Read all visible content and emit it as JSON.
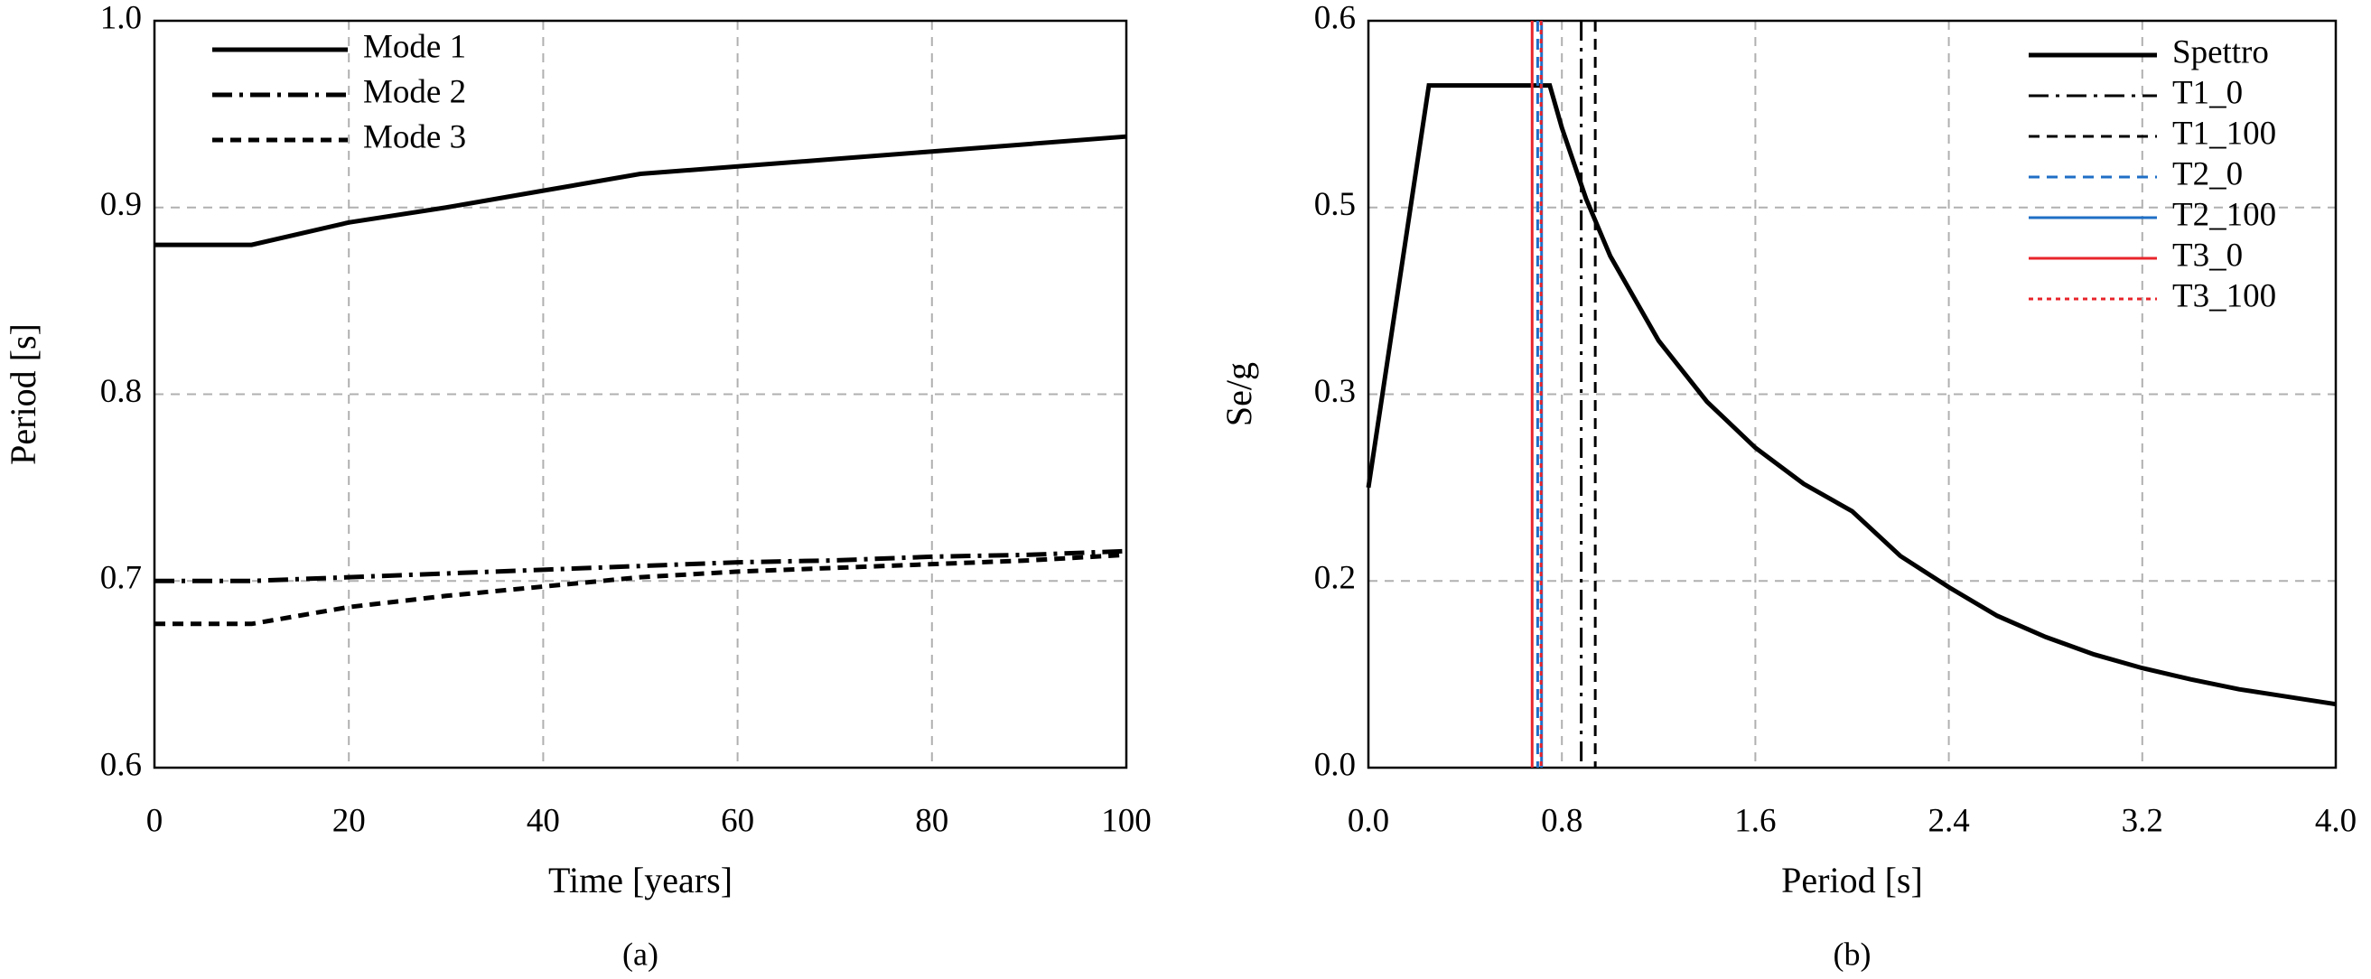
{
  "chart_data": [
    {
      "type": "line",
      "caption": "(a)",
      "x_label": "Time [years]",
      "y_label": "Period [s]",
      "x": [
        0,
        10,
        20,
        30,
        40,
        50,
        60,
        70,
        80,
        90,
        100
      ],
      "series": [
        {
          "name": "Mode 1",
          "color": "#000000",
          "dash": "solid",
          "values": [
            0.88,
            0.88,
            0.892,
            0.9,
            0.909,
            0.918,
            0.922,
            0.926,
            0.93,
            0.934,
            0.938
          ]
        },
        {
          "name": "Mode 2",
          "color": "#000000",
          "dash": "dash-dot",
          "values": [
            0.7,
            0.7,
            0.702,
            0.704,
            0.706,
            0.708,
            0.71,
            0.711,
            0.713,
            0.714,
            0.716
          ]
        },
        {
          "name": "Mode 3",
          "color": "#000000",
          "dash": "dash",
          "values": [
            0.677,
            0.677,
            0.686,
            0.692,
            0.697,
            0.702,
            0.705,
            0.707,
            0.709,
            0.711,
            0.714
          ]
        }
      ],
      "xlim": [
        0,
        100
      ],
      "xticks": [
        0,
        20,
        40,
        60,
        80,
        100
      ],
      "ylim": [
        0.6,
        1
      ],
      "yticks": [
        0.6,
        0.7,
        0.8,
        0.9,
        {
          "value": 1,
          "label": "1.0"
        }
      ],
      "grid": true,
      "legend": "top-left"
    },
    {
      "type": "line",
      "caption": "(b)",
      "x_label": "Period [s]",
      "y_label": "Se/g",
      "x": [
        0,
        0.25,
        0.75,
        0.8,
        0.9,
        1.0,
        1.2,
        1.4,
        1.6,
        1.8,
        2.0,
        2.2,
        2.4,
        2.6,
        2.8,
        3.0,
        3.2,
        3.4,
        3.6,
        3.8,
        4.0
      ],
      "series": [
        {
          "name": "Spettro",
          "color": "#000000",
          "dash": "solid",
          "values": [
            0.225,
            0.548,
            0.548,
            0.514,
            0.457,
            0.411,
            0.343,
            0.294,
            0.257,
            0.228,
            0.206,
            0.17,
            0.145,
            0.122,
            0.105,
            0.091,
            0.08,
            0.071,
            0.063,
            0.057,
            0.051
          ]
        },
        {
          "name": "T1_0",
          "color": "#000000",
          "dash": "dash-dot",
          "at": 0.88
        },
        {
          "name": "T1_100",
          "color": "#000000",
          "dash": "dash",
          "at": 0.938
        },
        {
          "name": "T2_0",
          "color": "#1f6fc6",
          "dash": "dash",
          "at": 0.7
        },
        {
          "name": "T2_100",
          "color": "#1f6fc6",
          "dash": "solid",
          "at": 0.716
        },
        {
          "name": "T3_0",
          "color": "#e8242b",
          "dash": "solid",
          "at": 0.677
        },
        {
          "name": "T3_100",
          "color": "#e8242b",
          "dash": "dot",
          "at": 0.714
        }
      ],
      "xlim": [
        0,
        4
      ],
      "xticks": [
        {
          "value": 0,
          "label": "0.0"
        },
        0.8,
        1.6,
        2.4,
        3.2,
        {
          "value": 4,
          "label": "4.0"
        }
      ],
      "ylim": [
        0,
        0.6
      ],
      "yticks": [
        {
          "value": 0,
          "label": "0.0"
        },
        {
          "value": 0.15,
          "label": "0.2"
        },
        0.3,
        {
          "value": 0.45,
          "label": "0.5"
        },
        0.6
      ],
      "grid": true,
      "legend": "top-right"
    }
  ]
}
